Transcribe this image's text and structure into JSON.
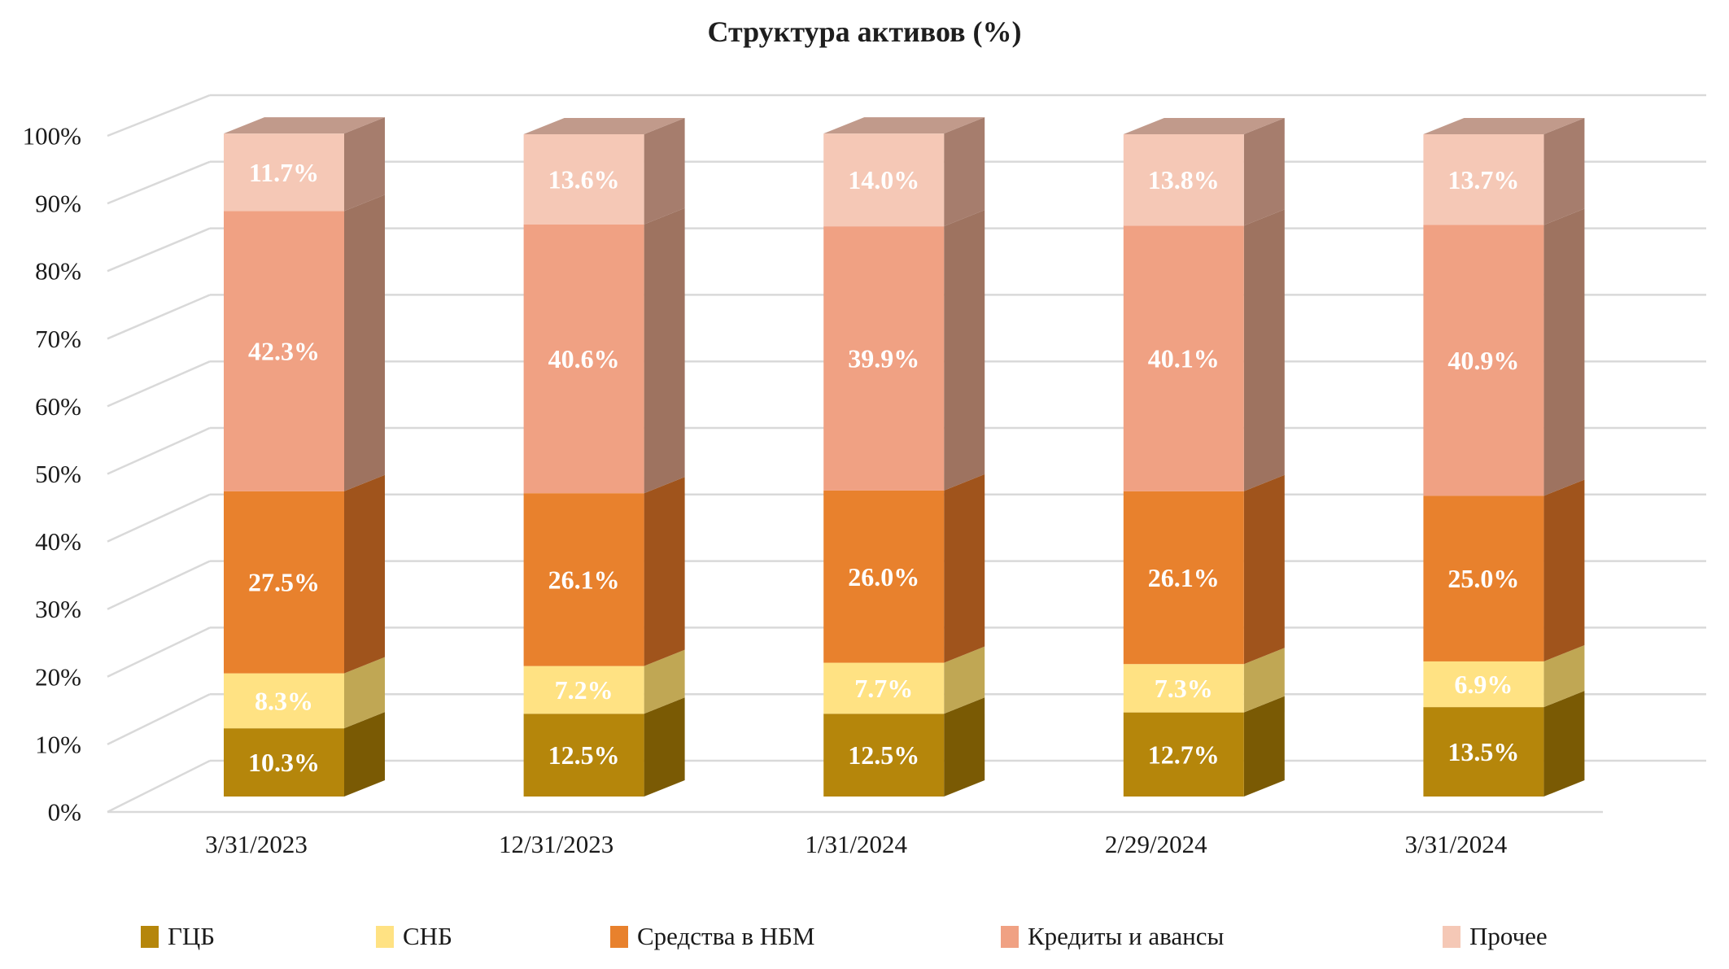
{
  "title": "Структура активов (%)",
  "chart_data": {
    "type": "bar",
    "subtype": "100%-stacked-column-3d",
    "title": "Структура активов (%)",
    "categories": [
      "3/31/2023",
      "12/31/2023",
      "1/31/2024",
      "2/29/2024",
      "3/31/2024"
    ],
    "series": [
      {
        "name": "ГЦБ",
        "values": [
          10.3,
          12.5,
          12.5,
          12.7,
          13.5
        ],
        "color_front": "#B5860B",
        "color_side": "#7A5A04"
      },
      {
        "name": "СНБ",
        "values": [
          8.3,
          7.2,
          7.7,
          7.3,
          6.9
        ],
        "color_front": "#FFE283",
        "color_side": "#C0A754"
      },
      {
        "name": "Средства в НБМ",
        "values": [
          27.5,
          26.1,
          26.0,
          26.1,
          25.0
        ],
        "color_front": "#E8812D",
        "color_side": "#A0541C"
      },
      {
        "name": "Кредиты и авансы",
        "values": [
          42.3,
          40.6,
          39.9,
          40.1,
          40.9
        ],
        "color_front": "#F0A183",
        "color_side": "#9E7360"
      },
      {
        "name": "Прочее",
        "values": [
          11.7,
          13.6,
          14.0,
          13.8,
          13.7
        ],
        "color_front": "#F5C8B6",
        "color_side": "#A67D6D",
        "color_top": "#C19A8B"
      }
    ],
    "value_label_format": "0.0%",
    "y_axis": {
      "min": 0,
      "max": 100,
      "tick_step": 10,
      "tick_labels": [
        "0%",
        "10%",
        "20%",
        "30%",
        "40%",
        "50%",
        "60%",
        "70%",
        "80%",
        "90%",
        "100%"
      ]
    },
    "grid": true,
    "gridline_color": "#D9D9D9",
    "background_color": "#FFFFFF",
    "text_color": "#1A1A1A",
    "legend_position": "bottom"
  }
}
